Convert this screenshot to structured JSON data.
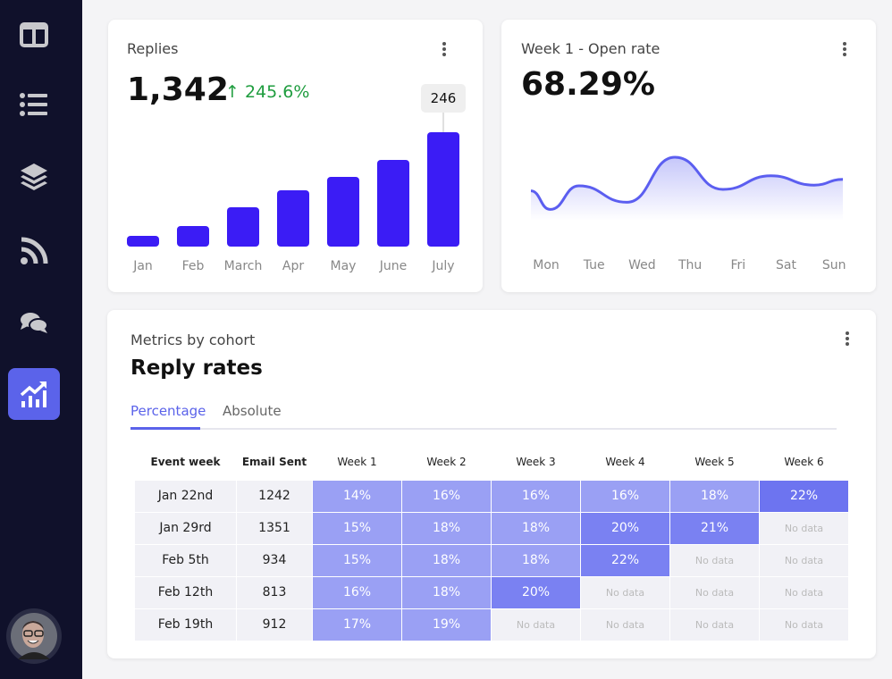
{
  "sidebar": {
    "items": [
      {
        "icon": "layout-columns-icon"
      },
      {
        "icon": "list-icon"
      },
      {
        "icon": "layers-icon"
      },
      {
        "icon": "rss-icon"
      },
      {
        "icon": "chat-bubbles-icon"
      },
      {
        "icon": "analytics-chart-icon",
        "active": true
      }
    ],
    "active_color": "#5b63ea"
  },
  "replies": {
    "title": "Replies",
    "value": "1,342",
    "change": "245.6%",
    "change_color": "#1f9d3f",
    "tooltip": "246"
  },
  "open_rate": {
    "title": "Week 1 - Open rate",
    "value": "68.29%"
  },
  "chart_data": [
    {
      "type": "bar",
      "categories": [
        "Jan",
        "Feb",
        "March",
        "Apr",
        "May",
        "June",
        "July"
      ],
      "values": [
        23,
        44,
        85,
        121,
        150,
        186,
        246
      ],
      "annotations": [
        "246"
      ],
      "color": "#3b1cf5"
    },
    {
      "type": "area",
      "categories": [
        "Mon",
        "Tue",
        "Wed",
        "Thu",
        "Fri",
        "Sat",
        "Sun"
      ],
      "x": [
        0,
        0.4,
        1,
        2,
        3,
        4,
        5,
        5.9,
        6.5
      ],
      "values": [
        58,
        32,
        65,
        42,
        105,
        60,
        79,
        66,
        74
      ],
      "color": "#5b5ef0"
    }
  ],
  "cohort": {
    "subtitle": "Metrics by cohort",
    "title": "Reply rates",
    "tabs": [
      "Percentage",
      "Absolute"
    ],
    "headers": [
      "Event week",
      "Email Sent",
      "Week 1",
      "Week 2",
      "Week 3",
      "Week 4",
      "Week 5",
      "Week 6"
    ],
    "no_data": "No data",
    "rows": [
      {
        "week": "Jan 22nd",
        "sent": "1242",
        "cells": [
          "14%",
          "16%",
          "16%",
          "16%",
          "18%",
          "22%"
        ]
      },
      {
        "week": "Jan 29rd",
        "sent": "1351",
        "cells": [
          "15%",
          "18%",
          "18%",
          "20%",
          "21%",
          null
        ]
      },
      {
        "week": "Feb 5th",
        "sent": "934",
        "cells": [
          "15%",
          "18%",
          "18%",
          "22%",
          null,
          null
        ]
      },
      {
        "week": "Feb 12th",
        "sent": "813",
        "cells": [
          "16%",
          "18%",
          "20%",
          null,
          null,
          null
        ]
      },
      {
        "week": "Feb 19th",
        "sent": "912",
        "cells": [
          "17%",
          "19%",
          null,
          null,
          null,
          null
        ]
      }
    ]
  }
}
